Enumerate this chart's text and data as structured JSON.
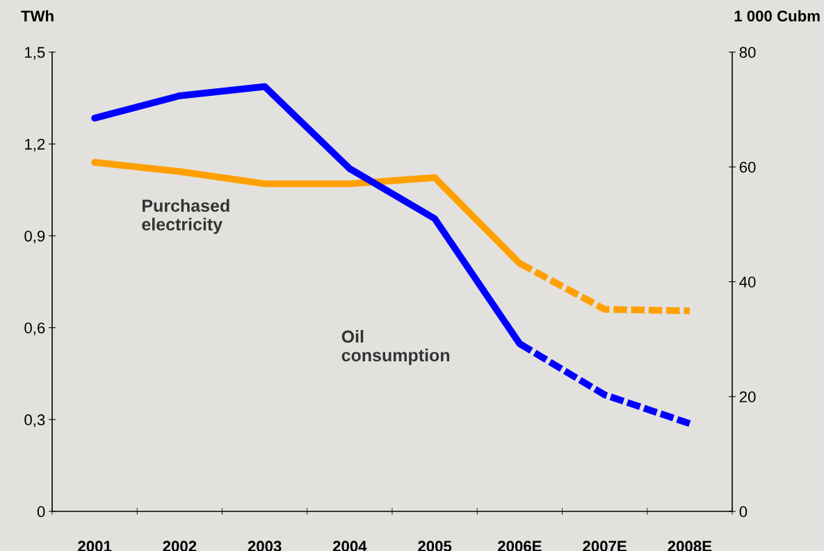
{
  "chart_data": {
    "type": "line",
    "ylabel": "TWh",
    "y2label": "1 000 Cubm",
    "categories": [
      "2001",
      "2002",
      "2003",
      "2004",
      "2005",
      "2006E",
      "2007E",
      "2008E"
    ],
    "series": [
      {
        "name": "Purchased\nelectricity",
        "color": "#ffa000",
        "line_style": "solid",
        "values": [
          1.14,
          1.11,
          1.07,
          1.07,
          1.09,
          0.81,
          null,
          null
        ]
      },
      {
        "color": "#ffa000",
        "line_style": "dashed",
        "values": [
          null,
          null,
          null,
          null,
          null,
          0.81,
          0.66,
          0.655
        ]
      },
      {
        "name": "Oil\nconsumption",
        "color": "#0000ff",
        "axis": "y2",
        "line_style": "solid",
        "values": [
          68.5,
          72.4,
          74.0,
          59.7,
          51.0,
          29.2,
          null,
          null
        ]
      },
      {
        "color": "#0000ff",
        "axis": "y2",
        "line_style": "dashed",
        "values": [
          null,
          null,
          null,
          null,
          null,
          29.2,
          20.3,
          15.3
        ]
      }
    ],
    "ylim": [
      0,
      1.5
    ],
    "yticks": [
      0,
      {
        "value": 0.3,
        "label": "0,3"
      },
      {
        "value": 0.6,
        "label": "0,6"
      },
      {
        "value": 0.9,
        "label": "0,9"
      },
      {
        "value": 1.2,
        "label": "1,2"
      },
      {
        "value": 1.5,
        "label": "1,5"
      }
    ],
    "y2lim": [
      0,
      80
    ],
    "y2ticks": [
      0,
      20,
      40,
      60,
      80
    ],
    "grid": false,
    "legend": false,
    "marker": "none"
  }
}
